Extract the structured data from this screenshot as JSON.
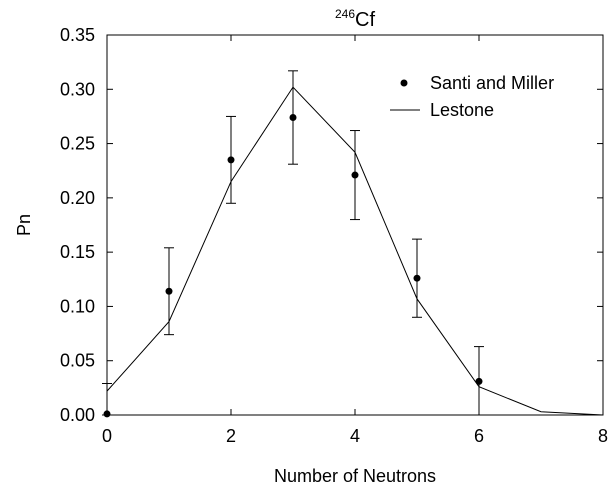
{
  "chart_data": {
    "type": "scatter",
    "title": {
      "superscript": "246",
      "text": "Cf"
    },
    "xlabel": "Number of Neutrons",
    "ylabel": "Pn",
    "xlim": [
      0,
      8
    ],
    "ylim": [
      0,
      0.35
    ],
    "x_ticks": [
      "0",
      "2",
      "4",
      "6",
      "8"
    ],
    "y_ticks": [
      "0.00",
      "0.05",
      "0.10",
      "0.15",
      "0.20",
      "0.25",
      "0.30",
      "0.35"
    ],
    "grid": false,
    "legend_position": "top-right",
    "series": [
      {
        "name": "Santi and Miller",
        "kind": "points-with-error-bars",
        "x": [
          0,
          1,
          2,
          3,
          4,
          5,
          6
        ],
        "y": [
          0.001,
          0.114,
          0.235,
          0.274,
          0.221,
          0.126,
          0.031
        ],
        "err": [
          0.028,
          0.04,
          0.04,
          0.043,
          0.041,
          0.036,
          0.032
        ]
      },
      {
        "name": "Lestone",
        "kind": "line",
        "x": [
          0,
          1,
          2,
          3,
          4,
          5,
          6,
          7,
          8
        ],
        "y": [
          0.022,
          0.086,
          0.215,
          0.302,
          0.242,
          0.107,
          0.026,
          0.003,
          0.0
        ]
      }
    ]
  }
}
